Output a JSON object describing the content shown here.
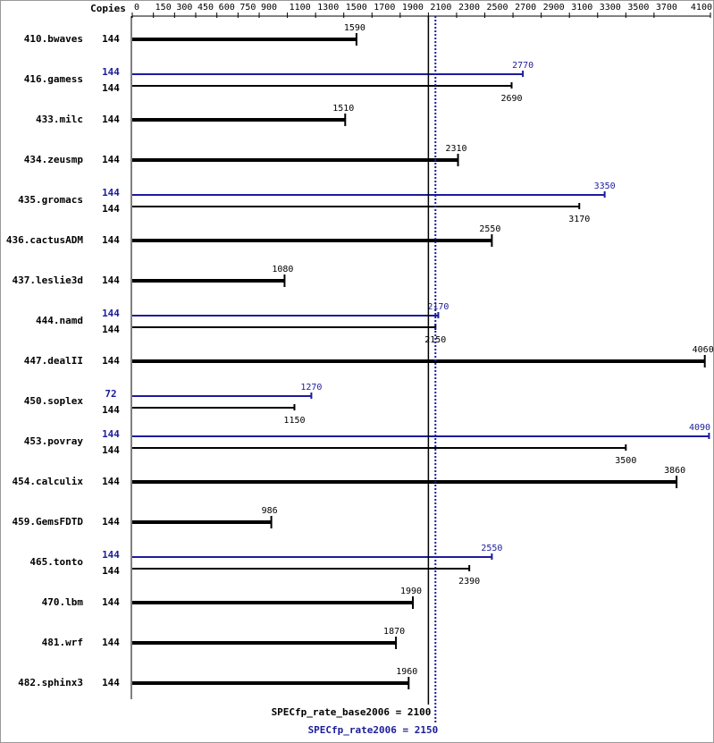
{
  "chart_data": {
    "type": "bar",
    "orientation": "horizontal",
    "copies_header": "Copies",
    "categories": [
      "410.bwaves",
      "416.gamess",
      "433.milc",
      "434.zeusmp",
      "435.gromacs",
      "436.cactusADM",
      "437.leslie3d",
      "444.namd",
      "447.dealII",
      "450.soplex",
      "453.povray",
      "454.calculix",
      "459.GemsFDTD",
      "465.tonto",
      "470.lbm",
      "481.wrf",
      "482.sphinx3"
    ],
    "series": [
      {
        "color": "#000000",
        "copies": [
          144,
          144,
          144,
          144,
          144,
          144,
          144,
          144,
          144,
          144,
          144,
          144,
          144,
          144,
          144,
          144,
          144
        ],
        "values": [
          1590,
          2690,
          1510,
          2310,
          3170,
          2550,
          1080,
          2150,
          4060,
          1150,
          3500,
          3860,
          986,
          2390,
          1990,
          1870,
          1960
        ]
      },
      {
        "color": "#1c1c9c",
        "copies": [
          null,
          144,
          null,
          null,
          144,
          null,
          null,
          144,
          null,
          72,
          144,
          null,
          null,
          144,
          null,
          null,
          null
        ],
        "values": [
          null,
          2770,
          null,
          null,
          3350,
          null,
          null,
          2170,
          null,
          1270,
          4090,
          null,
          null,
          2550,
          null,
          null,
          null
        ]
      }
    ],
    "xlim": [
      0,
      4100
    ],
    "xticks": [
      0,
      150,
      300,
      450,
      600,
      750,
      900,
      1100,
      1300,
      1500,
      1700,
      1900,
      2100,
      2300,
      2500,
      2700,
      2900,
      3100,
      3300,
      3500,
      3700,
      4100
    ],
    "reference_lines": [
      {
        "value": 2100,
        "label": "SPECfp_rate_base2006 = 2100",
        "color": "#000000",
        "style": "solid"
      },
      {
        "value": 2150,
        "label": "SPECfp_rate2006 = 2150",
        "color": "#1c1c9c",
        "style": "dotted"
      }
    ]
  }
}
